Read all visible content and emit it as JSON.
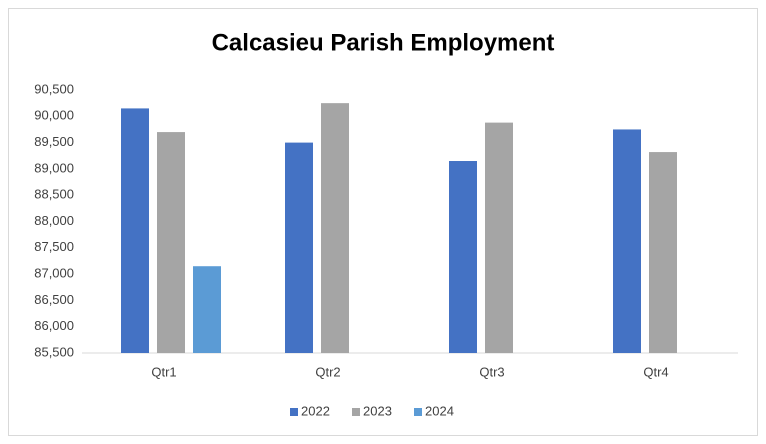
{
  "chart_data": {
    "type": "bar",
    "title": "Calcasieu Parish Employment",
    "categories": [
      "Qtr1",
      "Qtr2",
      "Qtr3",
      "Qtr4"
    ],
    "series": [
      {
        "name": "2022",
        "color": "#4472c4",
        "values": [
          90150,
          89500,
          89150,
          89750
        ]
      },
      {
        "name": "2023",
        "color": "#a5a5a5",
        "values": [
          89700,
          90250,
          89880,
          89320
        ]
      },
      {
        "name": "2024",
        "color": "#5b9bd5",
        "values": [
          87150,
          null,
          null,
          null
        ]
      }
    ],
    "ylim": [
      85500,
      90500
    ],
    "yticks": [
      {
        "value": 85500,
        "label": "85,500"
      },
      {
        "value": 86000,
        "label": "86,000"
      },
      {
        "value": 86500,
        "label": "86,500"
      },
      {
        "value": 87000,
        "label": "87,000"
      },
      {
        "value": 87500,
        "label": "87,500"
      },
      {
        "value": 88000,
        "label": "88,000"
      },
      {
        "value": 88500,
        "label": "88,500"
      },
      {
        "value": 89000,
        "label": "89,000"
      },
      {
        "value": 89500,
        "label": "89,500"
      },
      {
        "value": 90000,
        "label": "90,000"
      },
      {
        "value": 90500,
        "label": "90,500"
      }
    ],
    "grid": false,
    "legend": "bottom"
  }
}
